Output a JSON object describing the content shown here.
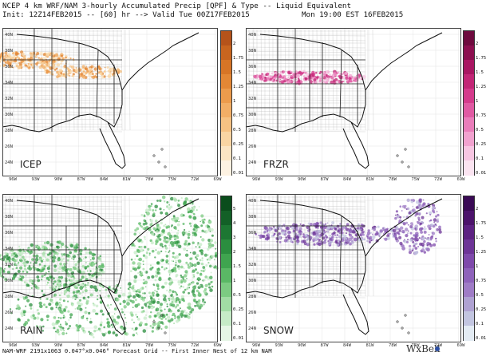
{
  "header": {
    "line1": "NCEP 4 km WRF/NAM 3-hourly Accumulated Precip [QPF] & Type -- Liquid Equivalent",
    "line2_left": "Init: 12Z14FEB2015 -- [60] hr --> Valid Tue 00Z17FEB2015",
    "line2_right": "Mon 19:00 EST 16FEB2015"
  },
  "axes": {
    "lat_labels": [
      "40N",
      "38N",
      "36N",
      "34N",
      "32N",
      "30N",
      "28N",
      "26N",
      "24N"
    ],
    "lon_labels": [
      "96W",
      "93W",
      "90W",
      "87W",
      "84W",
      "81W",
      "78W",
      "75W",
      "72W",
      "69W"
    ]
  },
  "panels": [
    {
      "id": "icep",
      "label": "ICEP",
      "color": "#e59443",
      "scale": [
        "2",
        "1.75",
        "1.5",
        "1.25",
        "1",
        "0.75",
        "0.5",
        "0.25",
        "0.1",
        "0.01"
      ],
      "colors": [
        "#b5531a",
        "#c8651f",
        "#d77526",
        "#e38735",
        "#ec9b4c",
        "#f2ae66",
        "#f6c283",
        "#f9d5a3",
        "#fbe5c4",
        "#fdf2e2"
      ]
    },
    {
      "id": "frzr",
      "label": "FRZR",
      "color": "#d84f9e",
      "scale": [
        "2",
        "1.75",
        "1.5",
        "1.25",
        "1",
        "0.75",
        "0.5",
        "0.25",
        "0.1",
        "0.01"
      ],
      "colors": [
        "#6e0a3e",
        "#8c0f4f",
        "#a91662",
        "#c22676",
        "#d43b8c",
        "#e05aa3",
        "#e97dba",
        "#f1a2cf",
        "#f7c6e2",
        "#fbe4f1"
      ]
    },
    {
      "id": "rain",
      "label": "RAIN",
      "color": "#3fa849",
      "scale": [
        "5",
        "4",
        "3",
        "2",
        "1.5",
        "1",
        "0.5",
        "0.25",
        "0.1",
        "0.01"
      ],
      "colors": [
        "#0b4d1c",
        "#136027",
        "#1d7733",
        "#2b8e3f",
        "#3fa44f",
        "#5ab865",
        "#7ccb82",
        "#a1dca4",
        "#c6ebc7",
        "#e6f6e6"
      ]
    },
    {
      "id": "snow",
      "label": "SNOW",
      "color": "#7e6fb7",
      "scale": [
        "2",
        "1.75",
        "1.5",
        "1.25",
        "1",
        "0.75",
        "0.5",
        "0.25",
        "0.1",
        "0.01"
      ],
      "colors": [
        "#3a0a55",
        "#4c136b",
        "#5d2282",
        "#6e3597",
        "#7f4aab",
        "#8e62ba",
        "#9f7cc6",
        "#afa2d2",
        "#c2c5e0",
        "#e3ebf3"
      ]
    }
  ],
  "footer": "NAM-WRF 2191x1063 0.047°x0.046° Forecast Grid -- First Inner Nest of 12 km NAM",
  "logo": "WxBell"
}
